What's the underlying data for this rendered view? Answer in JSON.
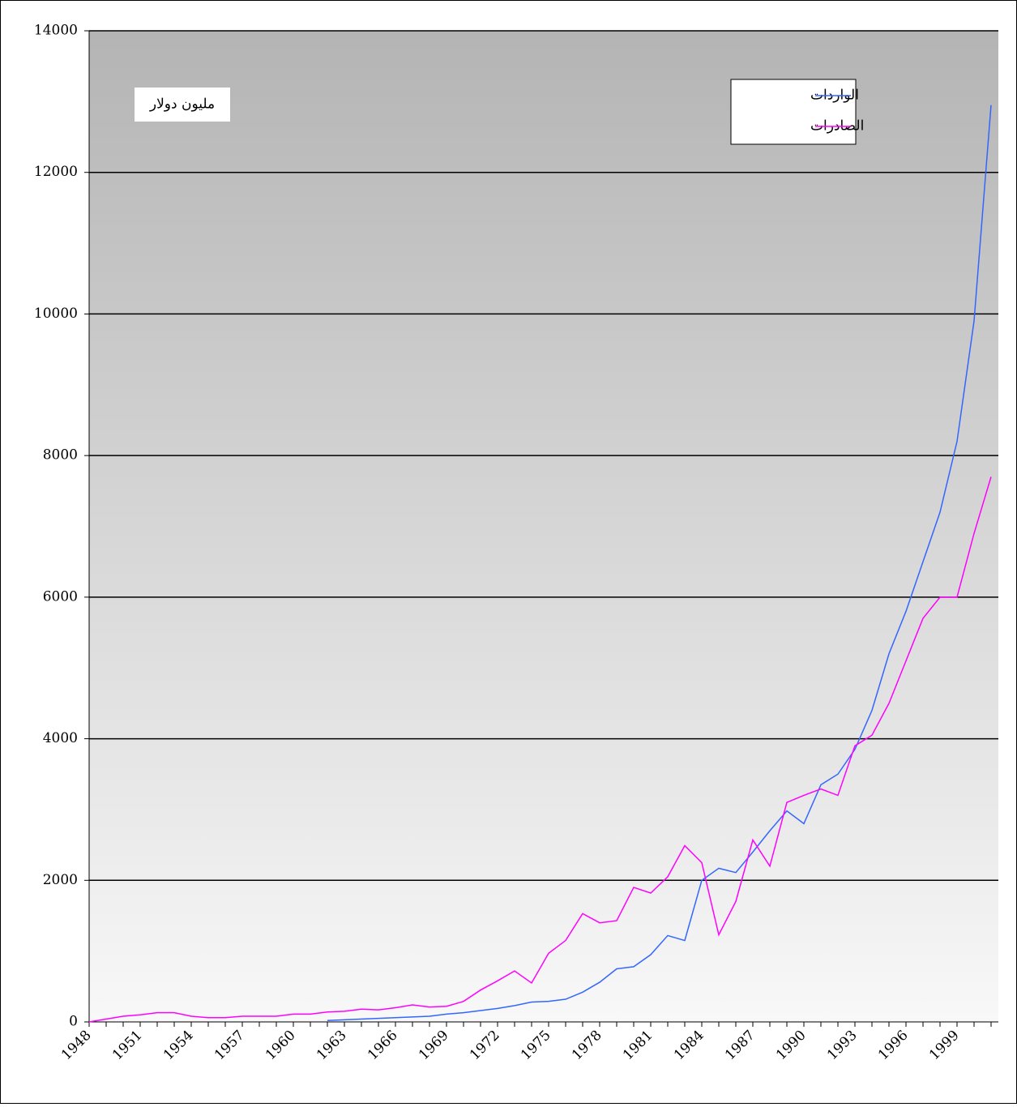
{
  "chart_data": {
    "type": "line",
    "annotation": "مليون دولار",
    "categories": [
      "1948",
      null,
      null,
      "1951",
      null,
      null,
      "1954",
      null,
      null,
      "1957",
      null,
      null,
      "1960",
      null,
      null,
      "1963",
      null,
      null,
      "1966",
      null,
      null,
      "1969",
      null,
      null,
      "1972",
      null,
      null,
      "1975",
      null,
      null,
      "1978",
      null,
      null,
      "1981",
      null,
      null,
      "1984",
      null,
      null,
      "1987",
      null,
      null,
      "1990",
      null,
      null,
      "1993",
      null,
      null,
      "1996",
      null,
      null,
      "1999",
      null,
      null
    ],
    "series": [
      {
        "name": "الواردات",
        "color": "#3366ff",
        "values": [
          null,
          null,
          null,
          null,
          null,
          null,
          null,
          null,
          null,
          null,
          null,
          null,
          null,
          null,
          20,
          30,
          40,
          50,
          60,
          70,
          80,
          110,
          130,
          160,
          190,
          230,
          280,
          290,
          320,
          420,
          560,
          750,
          780,
          950,
          1220,
          1150,
          2000,
          2170,
          2110,
          2400,
          2700,
          2980,
          2800,
          3350,
          3500,
          3850,
          4400,
          5200,
          5800,
          6500,
          7200,
          8200,
          9900,
          12950
        ]
      },
      {
        "name": "الصادرات",
        "color": "#ff00ff",
        "values": [
          0,
          40,
          80,
          100,
          130,
          130,
          80,
          60,
          60,
          80,
          80,
          80,
          110,
          110,
          140,
          150,
          180,
          170,
          200,
          240,
          210,
          220,
          290,
          450,
          580,
          720,
          550,
          970,
          1150,
          1530,
          1400,
          1430,
          1900,
          1820,
          2050,
          2490,
          2250,
          1230,
          1700,
          2570,
          2200,
          3100,
          3200,
          3290,
          3200,
          3900,
          4050,
          4500,
          5100,
          5700,
          6000,
          6000,
          6900,
          7700
        ]
      }
    ],
    "ylim": [
      0,
      14000
    ],
    "yticks": [
      0,
      2000,
      4000,
      6000,
      8000,
      10000,
      12000,
      14000
    ],
    "grid": true
  }
}
